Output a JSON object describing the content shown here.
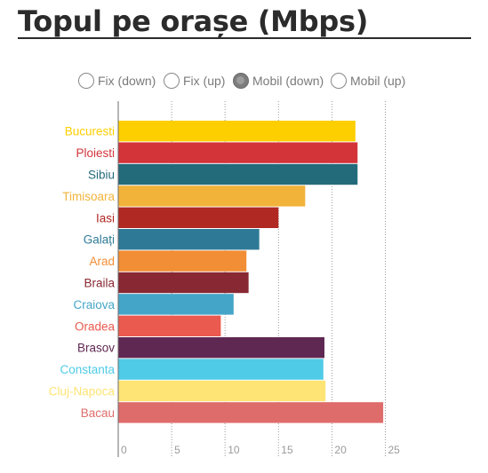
{
  "title": "Topul pe orașe (Mbps)",
  "legend_options": [
    {
      "label": "Fix (down)",
      "checked": false
    },
    {
      "label": "Fix (up)",
      "checked": false
    },
    {
      "label": "Mobil (down)",
      "checked": true
    },
    {
      "label": "Mobil (up)",
      "checked": false
    }
  ],
  "chart_data": {
    "type": "bar",
    "orientation": "horizontal",
    "title": "Topul pe orașe (Mbps)",
    "xlabel": "",
    "ylabel": "",
    "xlim": [
      0,
      27
    ],
    "xticks": [
      0,
      5,
      10,
      15,
      20,
      25
    ],
    "grid": "vertical-dotted",
    "categories": [
      "Bucuresti",
      "Ploiesti",
      "Sibiu",
      "Timisoara",
      "Iasi",
      "Galați",
      "Arad",
      "Braila",
      "Craiova",
      "Oradea",
      "Brasov",
      "Constanta",
      "Cluj-Napoca",
      "Bacau"
    ],
    "values": [
      22.2,
      22.4,
      22.4,
      17.5,
      15.0,
      13.2,
      12.0,
      12.2,
      10.8,
      9.6,
      19.3,
      19.2,
      19.4,
      24.8
    ],
    "colors": [
      "#fecf00",
      "#d3343a",
      "#236a7b",
      "#f2b33b",
      "#b02923",
      "#2e7a96",
      "#f28e35",
      "#882832",
      "#45a5c9",
      "#ea5a4e",
      "#5f2852",
      "#4fcbe7",
      "#fde474",
      "#de6c6b"
    ]
  }
}
